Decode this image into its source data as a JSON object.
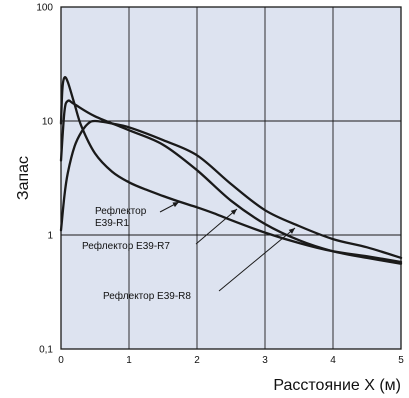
{
  "chart_data": {
    "type": "line",
    "xlabel": "Расстояние X (м)",
    "ylabel": "Запас",
    "x_scale": "linear",
    "y_scale": "log",
    "xlim": [
      0,
      5
    ],
    "ylim": [
      0.1,
      100
    ],
    "x_ticks": [
      "0",
      "1",
      "2",
      "3",
      "4",
      "5"
    ],
    "y_ticks": [
      "0,1",
      "1",
      "10",
      "100"
    ],
    "grid": true,
    "series": [
      {
        "name": "Рефлектор E39-R1",
        "x": [
          0,
          0.02,
          0.05,
          0.1,
          0.2,
          0.3,
          0.5,
          0.75,
          1.0,
          1.25,
          1.5,
          1.75,
          2.0,
          2.25,
          2.5,
          3.0,
          3.5,
          4.0,
          4.5,
          5.0
        ],
        "y": [
          9.5,
          19,
          24,
          22,
          14,
          9,
          5.2,
          3.6,
          2.9,
          2.5,
          2.2,
          1.95,
          1.75,
          1.55,
          1.35,
          1.05,
          0.85,
          0.72,
          0.65,
          0.58
        ]
      },
      {
        "name": "Рефлектор E39-R7",
        "x": [
          0,
          0.05,
          0.1,
          0.2,
          0.5,
          1.0,
          1.5,
          2.0,
          2.5,
          3.0,
          3.5,
          4.0,
          4.5,
          5.0
        ],
        "y": [
          4.5,
          12,
          15,
          14,
          11,
          8.3,
          6.2,
          3.7,
          2.0,
          1.25,
          0.9,
          0.72,
          0.63,
          0.56
        ]
      },
      {
        "name": "Рефлектор E39-R8",
        "x": [
          0,
          0.05,
          0.1,
          0.2,
          0.3,
          0.4,
          0.5,
          0.75,
          1.0,
          1.5,
          2.0,
          2.5,
          3.0,
          3.5,
          4.0,
          4.5,
          5.0
        ],
        "y": [
          1.1,
          2.2,
          3.5,
          6.0,
          8.0,
          9.5,
          10.0,
          9.5,
          8.8,
          6.8,
          5.0,
          2.8,
          1.65,
          1.2,
          0.92,
          0.78,
          0.63
        ]
      }
    ],
    "annotations": [
      {
        "text_lines": [
          "Рефлектор",
          "E39-R1"
        ],
        "points_to": {
          "series": "Рефлектор E39-R1",
          "x": 1.75
        }
      },
      {
        "text_lines": [
          "Рефлектор E39-R7"
        ],
        "points_to": {
          "series": "Рефлектор E39-R7",
          "x": 2.6
        }
      },
      {
        "text_lines": [
          "Рефлектор E39-R8"
        ],
        "points_to": {
          "series": "Рефлектор E39-R8",
          "x": 3.45
        }
      }
    ]
  }
}
